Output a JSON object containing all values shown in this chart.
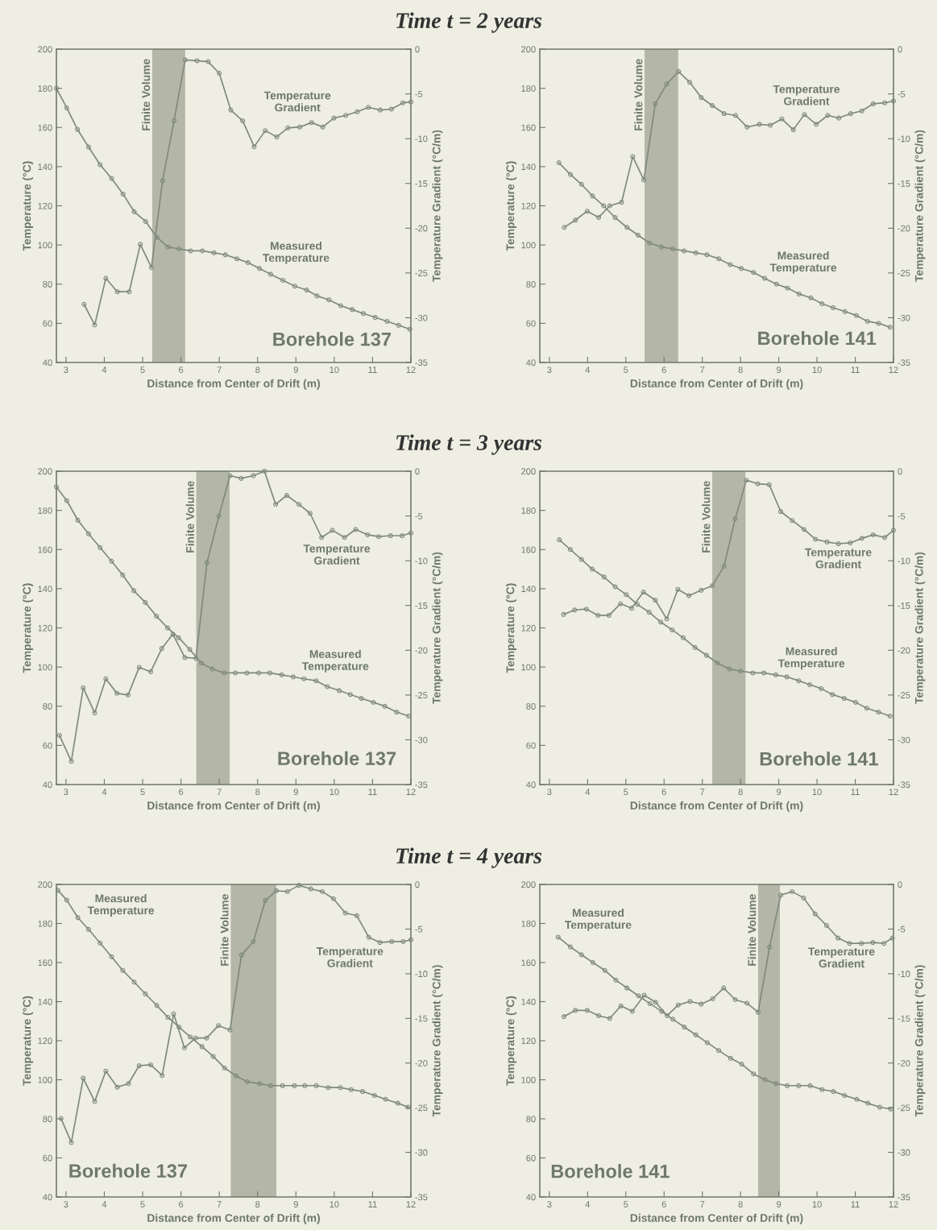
{
  "chart_data": [
    {
      "type": "line",
      "title": "Time t = 2 years",
      "xlabel": "Distance from Center of Drift (m)",
      "ylabel": "Temperature (°C)",
      "y2label": "Temperature Gradient (°C/m)",
      "marker": "circle",
      "xlim": [
        2.75,
        12
      ],
      "xticks": [
        3,
        4,
        5,
        6,
        7,
        8,
        9,
        10,
        11,
        12
      ],
      "ylim": [
        40,
        200
      ],
      "yticks": [
        40,
        60,
        80,
        100,
        120,
        140,
        160,
        180,
        200
      ],
      "y2lim": [
        -35,
        0
      ],
      "y2ticks": [
        -35,
        -30,
        -25,
        -20,
        -15,
        -10,
        -5,
        0
      ],
      "series": [
        {
          "name": "Measured\nTemperature",
          "color": "#7f8a7c",
          "x": [
            2.75,
            3.02,
            3.3,
            3.59,
            3.89,
            4.19,
            4.49,
            4.78,
            5.08,
            5.37,
            5.66,
            5.95,
            6.25,
            6.56,
            6.86,
            7.16,
            7.46,
            7.75,
            8.05,
            8.34,
            8.66,
            8.97,
            9.28,
            9.55,
            9.86,
            10.17,
            10.47,
            10.76,
            11.07,
            11.38,
            11.68,
            11.97
          ],
          "values": [
            180,
            170,
            159,
            150,
            141,
            134,
            126,
            117,
            112,
            104,
            99,
            98,
            97,
            97,
            96,
            95,
            93,
            91,
            88,
            85,
            82,
            79,
            77,
            74,
            72,
            69,
            67,
            65,
            63,
            61,
            59,
            57
          ]
        },
        {
          "name": "Temperature\nGradient",
          "axis": "y2",
          "color": "#7f8a7c",
          "x": [
            3.47,
            3.75,
            4.04,
            4.34,
            4.65,
            4.94,
            5.23,
            5.52,
            5.82,
            6.11,
            6.42,
            6.71,
            7.0,
            7.3,
            7.61,
            7.91,
            8.2,
            8.5,
            8.79,
            9.1,
            9.41,
            9.7,
            9.99,
            10.3,
            10.6,
            10.89,
            11.2,
            11.49,
            11.79,
            12.0
          ],
          "values": [
            -28.5,
            -30.8,
            -25.6,
            -27.1,
            -27.1,
            -21.8,
            -24.4,
            -14.7,
            -8,
            -1.2,
            -1.3,
            -1.4,
            -2.7,
            -6.8,
            -8,
            -10.9,
            -9.1,
            -9.8,
            -8.8,
            -8.7,
            -8.2,
            -8.7,
            -7.7,
            -7.4,
            -7,
            -6.5,
            -6.8,
            -6.7,
            -6,
            -5.9
          ]
        }
      ],
      "bands": [
        {
          "axis": "x",
          "from": 5.25,
          "to": 6.11,
          "label": "Finite Volume",
          "color": "#b4b6a8"
        }
      ],
      "annotations": [
        "Borehole 137"
      ]
    },
    {
      "type": "line",
      "xlabel": "Distance from Center of Drift (m)",
      "ylabel": "Temperature (°C)",
      "y2label": "Temperature Gradient (°C/m)",
      "marker": "circle",
      "xlim": [
        2.75,
        12
      ],
      "xticks": [
        3,
        4,
        5,
        6,
        7,
        8,
        9,
        10,
        11,
        12
      ],
      "ylim": [
        40,
        200
      ],
      "yticks": [
        40,
        60,
        80,
        100,
        120,
        140,
        160,
        180,
        200
      ],
      "y2lim": [
        -35,
        0
      ],
      "y2ticks": [
        -35,
        -30,
        -25,
        -20,
        -15,
        -10,
        -5,
        0
      ],
      "series": [
        {
          "name": "Measured\nTemperature",
          "color": "#7f8a7c",
          "x": [
            3.25,
            3.55,
            3.84,
            4.13,
            4.42,
            4.72,
            5.03,
            5.32,
            5.62,
            5.93,
            6.23,
            6.52,
            6.83,
            7.12,
            7.43,
            7.73,
            8.02,
            8.34,
            8.63,
            8.94,
            9.23,
            9.53,
            9.84,
            10.13,
            10.42,
            10.73,
            11.03,
            11.32,
            11.61,
            11.91
          ],
          "values": [
            142,
            136,
            131,
            125,
            120,
            114,
            109,
            105,
            101,
            99,
            98,
            97,
            96,
            95,
            93,
            90,
            88,
            86,
            83,
            80,
            78,
            75,
            73,
            70,
            68,
            66,
            64,
            61,
            60,
            58
          ]
        },
        {
          "name": "Temperature\nGradient",
          "axis": "y2",
          "color": "#7f8a7c",
          "x": [
            3.39,
            3.68,
            3.99,
            4.29,
            4.58,
            4.89,
            5.18,
            5.47,
            5.77,
            6.07,
            6.38,
            6.67,
            6.97,
            7.26,
            7.57,
            7.87,
            8.17,
            8.49,
            8.78,
            9.08,
            9.38,
            9.67,
            9.98,
            10.28,
            10.57,
            10.88,
            11.17,
            11.47,
            11.77,
            12.0
          ],
          "values": [
            -19.9,
            -19.1,
            -18.1,
            -18.8,
            -17.5,
            -17.1,
            -12,
            -14.6,
            -6.1,
            -3.9,
            -2.5,
            -3.7,
            -5.4,
            -6.3,
            -7.2,
            -7.4,
            -8.7,
            -8.4,
            -8.5,
            -7.8,
            -9,
            -7.3,
            -8.4,
            -7.4,
            -7.7,
            -7.2,
            -6.9,
            -6.1,
            -6,
            -5.8
          ]
        }
      ],
      "bands": [
        {
          "axis": "x",
          "from": 5.49,
          "to": 6.37,
          "label": "Finite Volume",
          "color": "#b4b6a8"
        }
      ],
      "annotations": [
        "Borehole 141"
      ]
    },
    {
      "type": "line",
      "title": "Time t = 3 years",
      "xlabel": "Distance from Center of Drift (m)",
      "ylabel": "Temperature (°C)",
      "y2label": "Temperature Gradient (°C/m)",
      "marker": "circle",
      "xlim": [
        2.75,
        12
      ],
      "xticks": [
        3,
        4,
        5,
        6,
        7,
        8,
        9,
        10,
        11,
        12
      ],
      "ylim": [
        40,
        200
      ],
      "yticks": [
        40,
        60,
        80,
        100,
        120,
        140,
        160,
        180,
        200
      ],
      "y2lim": [
        -35,
        0
      ],
      "y2ticks": [
        -35,
        -30,
        -25,
        -20,
        -15,
        -10,
        -5,
        0
      ],
      "series": [
        {
          "name": "Measured\nTemperature",
          "color": "#7f8a7c",
          "x": [
            2.75,
            3.02,
            3.31,
            3.59,
            3.89,
            4.19,
            4.48,
            4.77,
            5.07,
            5.36,
            5.65,
            5.94,
            6.23,
            6.53,
            6.82,
            7.13,
            7.42,
            7.72,
            8.03,
            8.32,
            8.63,
            8.93,
            9.21,
            9.53,
            9.82,
            10.13,
            10.42,
            10.71,
            11.02,
            11.32,
            11.63,
            11.94
          ],
          "values": [
            192,
            185,
            175,
            168,
            161,
            154,
            147,
            139,
            133,
            126,
            120,
            115,
            109,
            102,
            99,
            97,
            97,
            97,
            97,
            97,
            96,
            95,
            94,
            93,
            90,
            88,
            86,
            84,
            82,
            80,
            77,
            75
          ]
        },
        {
          "name": "Temperature\nGradient",
          "axis": "y2",
          "color": "#7f8a7c",
          "x": [
            2.83,
            3.14,
            3.45,
            3.75,
            4.04,
            4.33,
            4.62,
            4.91,
            5.21,
            5.5,
            5.79,
            6.1,
            6.39,
            6.68,
            6.99,
            7.28,
            7.57,
            7.89,
            8.18,
            8.47,
            8.76,
            9.08,
            9.37,
            9.67,
            9.95,
            10.27,
            10.56,
            10.87,
            11.16,
            11.47,
            11.77,
            12.0
          ],
          "values": [
            -29.5,
            -32.4,
            -24.2,
            -27,
            -23.2,
            -24.8,
            -25,
            -21.9,
            -22.4,
            -19.8,
            -18.2,
            -20.8,
            -20.9,
            -10.2,
            -5,
            -0.5,
            -0.8,
            -0.5,
            0,
            -3.7,
            -2.7,
            -3.7,
            -4.7,
            -7.4,
            -6.6,
            -7.4,
            -6.5,
            -7.1,
            -7.3,
            -7.2,
            -7.2,
            -6.9
          ]
        }
      ],
      "bands": [
        {
          "axis": "x",
          "from": 6.4,
          "to": 7.27,
          "label": "Finite Volume",
          "color": "#b4b6a8"
        }
      ],
      "annotations": [
        "Borehole 137"
      ]
    },
    {
      "type": "line",
      "xlabel": "Distance from Center of Drift (m)",
      "ylabel": "Temperature (°C)",
      "y2label": "Temperature Gradient (°C/m)",
      "marker": "circle",
      "xlim": [
        2.75,
        12
      ],
      "xticks": [
        3,
        4,
        5,
        6,
        7,
        8,
        9,
        10,
        11,
        12
      ],
      "ylim": [
        40,
        200
      ],
      "yticks": [
        40,
        60,
        80,
        100,
        120,
        140,
        160,
        180,
        200
      ],
      "y2lim": [
        -35,
        0
      ],
      "y2ticks": [
        -35,
        -30,
        -25,
        -20,
        -15,
        -10,
        -5,
        0
      ],
      "series": [
        {
          "name": "Measured\nTemperature",
          "color": "#7f8a7c",
          "x": [
            3.26,
            3.55,
            3.84,
            4.12,
            4.43,
            4.72,
            5.01,
            5.3,
            5.61,
            5.91,
            6.21,
            6.5,
            6.81,
            7.11,
            7.4,
            7.71,
            8.0,
            8.32,
            8.61,
            8.92,
            9.21,
            9.52,
            9.81,
            10.11,
            10.4,
            10.71,
            11.01,
            11.3,
            11.61,
            11.91
          ],
          "values": [
            165,
            160,
            155,
            150,
            146,
            141,
            137,
            132,
            128,
            123,
            119,
            115,
            110,
            106,
            102,
            99,
            98,
            97,
            97,
            96,
            95,
            93,
            91,
            89,
            86,
            84,
            82,
            79,
            77,
            75
          ]
        },
        {
          "name": "Temperature\nGradient",
          "axis": "y2",
          "color": "#7f8a7c",
          "x": [
            3.37,
            3.66,
            3.97,
            4.27,
            4.56,
            4.86,
            5.15,
            5.46,
            5.77,
            6.07,
            6.36,
            6.65,
            6.97,
            7.26,
            7.57,
            7.86,
            8.15,
            8.45,
            8.75,
            9.05,
            9.35,
            9.66,
            9.96,
            10.26,
            10.56,
            10.87,
            11.17,
            11.47,
            11.77,
            12.0
          ],
          "values": [
            -16,
            -15.5,
            -15.4,
            -16.1,
            -16.1,
            -14.8,
            -15.3,
            -13.5,
            -14.4,
            -16.5,
            -13.2,
            -13.9,
            -13.3,
            -12.8,
            -10.6,
            -5.3,
            -1,
            -1.4,
            -1.5,
            -4.5,
            -5.5,
            -6.5,
            -7.6,
            -7.9,
            -8.1,
            -8,
            -7.5,
            -7.1,
            -7.4,
            -6.6
          ]
        }
      ],
      "bands": [
        {
          "axis": "x",
          "from": 7.26,
          "to": 8.13,
          "label": "Finite Volume",
          "color": "#b4b6a8"
        }
      ],
      "annotations": [
        "Borehole 141"
      ]
    },
    {
      "type": "line",
      "title": "Time t = 4 years",
      "xlabel": "Distance from Center of Drift (m)",
      "ylabel": "Temperature (°C)",
      "y2label": "Temperature Gradient (°C/m)",
      "marker": "circle",
      "xlim": [
        2.75,
        12
      ],
      "xticks": [
        3,
        4,
        5,
        6,
        7,
        8,
        9,
        10,
        11,
        12
      ],
      "ylim": [
        40,
        200
      ],
      "yticks": [
        40,
        60,
        80,
        100,
        120,
        140,
        160,
        180,
        200
      ],
      "y2lim": [
        -35,
        0
      ],
      "y2ticks": [
        -35,
        -30,
        -25,
        -20,
        -15,
        -10,
        -5,
        0
      ],
      "series": [
        {
          "name": "Measured\nTemperature",
          "color": "#7f8a7c",
          "x": [
            2.79,
            3.02,
            3.31,
            3.59,
            3.89,
            4.19,
            4.48,
            4.78,
            5.07,
            5.37,
            5.66,
            5.95,
            6.24,
            6.55,
            6.84,
            7.14,
            7.44,
            7.73,
            8.05,
            8.34,
            8.65,
            8.96,
            9.23,
            9.53,
            9.84,
            10.16,
            10.44,
            10.74,
            11.05,
            11.34,
            11.66,
            11.93
          ],
          "values": [
            197,
            192,
            183,
            177,
            170,
            163,
            156,
            150,
            144,
            138,
            132,
            127,
            122,
            117,
            112,
            106,
            102,
            99,
            98,
            97,
            97,
            97,
            97,
            97,
            96,
            96,
            95,
            94,
            92,
            90,
            88,
            86
          ]
        },
        {
          "name": "Temperature\nGradient",
          "axis": "y2",
          "color": "#7f8a7c",
          "x": [
            2.87,
            3.14,
            3.45,
            3.75,
            4.04,
            4.34,
            4.63,
            4.91,
            5.21,
            5.51,
            5.81,
            6.09,
            6.38,
            6.67,
            6.98,
            7.28,
            7.58,
            7.89,
            8.2,
            8.49,
            8.78,
            9.08,
            9.39,
            9.69,
            9.98,
            10.29,
            10.59,
            10.9,
            11.19,
            11.5,
            11.8,
            12.0
          ],
          "values": [
            -26.2,
            -28.9,
            -21.7,
            -24.3,
            -20.9,
            -22.7,
            -22.3,
            -20.3,
            -20.2,
            -21.4,
            -14.5,
            -18.3,
            -17.2,
            -17.2,
            -15.8,
            -16.3,
            -7.9,
            -6.4,
            -1.8,
            -0.7,
            -0.8,
            -0.1,
            -0.5,
            -0.8,
            -1.6,
            -3.2,
            -3.5,
            -5.9,
            -6.5,
            -6.4,
            -6.4,
            -6.2
          ]
        }
      ],
      "bands": [
        {
          "axis": "x",
          "from": 7.3,
          "to": 8.49,
          "label": "Finite Volume",
          "color": "#b4b6a8"
        }
      ],
      "annotations": [
        "Borehole 137"
      ]
    },
    {
      "type": "line",
      "xlabel": "Distance from Center of Drift (m)",
      "ylabel": "Temperature (°C)",
      "y2label": "Temperature Gradient (°C/m)",
      "marker": "circle",
      "xlim": [
        2.75,
        12
      ],
      "xticks": [
        3,
        4,
        5,
        6,
        7,
        8,
        9,
        10,
        11,
        12
      ],
      "ylim": [
        40,
        200
      ],
      "yticks": [
        40,
        60,
        80,
        100,
        120,
        140,
        160,
        180,
        200
      ],
      "y2lim": [
        -35,
        0
      ],
      "y2ticks": [
        -35,
        -30,
        -25,
        -20,
        -15,
        -10,
        -5,
        0
      ],
      "series": [
        {
          "name": "Measured\nTemperature",
          "color": "#7f8a7c",
          "x": [
            3.23,
            3.55,
            3.84,
            4.14,
            4.45,
            4.74,
            5.03,
            5.33,
            5.63,
            5.94,
            6.23,
            6.53,
            6.83,
            7.13,
            7.43,
            7.74,
            8.03,
            8.34,
            8.64,
            8.93,
            9.22,
            9.52,
            9.82,
            10.13,
            10.43,
            10.72,
            11.04,
            11.33,
            11.64,
            11.93
          ],
          "values": [
            173,
            168,
            164,
            160,
            156,
            151,
            147,
            143,
            139,
            135,
            131,
            127,
            123,
            119,
            115,
            111,
            108,
            103,
            100,
            98,
            97,
            97,
            97,
            95,
            94,
            92,
            90,
            88,
            86,
            85
          ]
        },
        {
          "name": "Temperature\nGradient",
          "axis": "y2",
          "color": "#7f8a7c",
          "x": [
            3.38,
            3.68,
            3.99,
            4.29,
            4.58,
            4.87,
            5.17,
            5.48,
            5.78,
            6.08,
            6.37,
            6.68,
            6.97,
            7.27,
            7.56,
            7.86,
            8.17,
            8.46,
            8.76,
            9.05,
            9.35,
            9.65,
            9.95,
            10.25,
            10.55,
            10.85,
            11.16,
            11.46,
            11.75,
            11.97
          ],
          "values": [
            -14.8,
            -14.1,
            -14.1,
            -14.7,
            -15,
            -13.6,
            -14.2,
            -12.4,
            -13.2,
            -14.7,
            -13.5,
            -13.1,
            -13.4,
            -12.8,
            -11.6,
            -12.9,
            -13.3,
            -14.3,
            -7,
            -1.2,
            -0.8,
            -1.5,
            -3.3,
            -4.6,
            -6,
            -6.6,
            -6.6,
            -6.5,
            -6.6,
            -6
          ]
        }
      ],
      "bands": [
        {
          "axis": "x",
          "from": 8.46,
          "to": 9.03,
          "label": "Finite Volume",
          "color": "#b4b6a8"
        }
      ],
      "annotations": [
        "Borehole 141"
      ]
    }
  ]
}
